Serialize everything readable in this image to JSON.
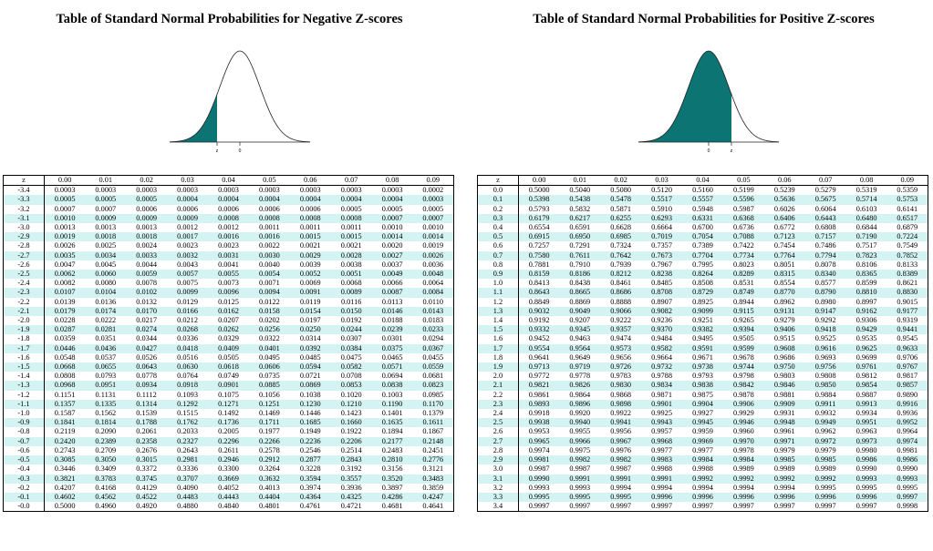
{
  "negative": {
    "title": "Table of Standard Normal Probabilities for Negative Z-scores",
    "curve_labels": [
      "z",
      "0"
    ],
    "shading_color": "#0d7474",
    "header": [
      "z",
      "0.00",
      "0.01",
      "0.02",
      "0.03",
      "0.04",
      "0.05",
      "0.06",
      "0.07",
      "0.08",
      "0.09"
    ],
    "rows": [
      [
        "-3.4",
        "0.0003",
        "0.0003",
        "0.0003",
        "0.0003",
        "0.0003",
        "0.0003",
        "0.0003",
        "0.0003",
        "0.0003",
        "0.0002"
      ],
      [
        "-3.3",
        "0.0005",
        "0.0005",
        "0.0005",
        "0.0004",
        "0.0004",
        "0.0004",
        "0.0004",
        "0.0004",
        "0.0004",
        "0.0003"
      ],
      [
        "-3.2",
        "0.0007",
        "0.0007",
        "0.0006",
        "0.0006",
        "0.0006",
        "0.0006",
        "0.0006",
        "0.0005",
        "0.0005",
        "0.0005"
      ],
      [
        "-3.1",
        "0.0010",
        "0.0009",
        "0.0009",
        "0.0009",
        "0.0008",
        "0.0008",
        "0.0008",
        "0.0008",
        "0.0007",
        "0.0007"
      ],
      [
        "-3.0",
        "0.0013",
        "0.0013",
        "0.0013",
        "0.0012",
        "0.0012",
        "0.0011",
        "0.0011",
        "0.0011",
        "0.0010",
        "0.0010"
      ],
      [
        "-2.9",
        "0.0019",
        "0.0018",
        "0.0018",
        "0.0017",
        "0.0016",
        "0.0016",
        "0.0015",
        "0.0015",
        "0.0014",
        "0.0014"
      ],
      [
        "-2.8",
        "0.0026",
        "0.0025",
        "0.0024",
        "0.0023",
        "0.0023",
        "0.0022",
        "0.0021",
        "0.0021",
        "0.0020",
        "0.0019"
      ],
      [
        "-2.7",
        "0.0035",
        "0.0034",
        "0.0033",
        "0.0032",
        "0.0031",
        "0.0030",
        "0.0029",
        "0.0028",
        "0.0027",
        "0.0026"
      ],
      [
        "-2.6",
        "0.0047",
        "0.0045",
        "0.0044",
        "0.0043",
        "0.0041",
        "0.0040",
        "0.0039",
        "0.0038",
        "0.0037",
        "0.0036"
      ],
      [
        "-2.5",
        "0.0062",
        "0.0060",
        "0.0059",
        "0.0057",
        "0.0055",
        "0.0054",
        "0.0052",
        "0.0051",
        "0.0049",
        "0.0048"
      ],
      [
        "-2.4",
        "0.0082",
        "0.0080",
        "0.0078",
        "0.0075",
        "0.0073",
        "0.0071",
        "0.0069",
        "0.0068",
        "0.0066",
        "0.0064"
      ],
      [
        "-2.3",
        "0.0107",
        "0.0104",
        "0.0102",
        "0.0099",
        "0.0096",
        "0.0094",
        "0.0091",
        "0.0089",
        "0.0087",
        "0.0084"
      ],
      [
        "-2.2",
        "0.0139",
        "0.0136",
        "0.0132",
        "0.0129",
        "0.0125",
        "0.0122",
        "0.0119",
        "0.0116",
        "0.0113",
        "0.0110"
      ],
      [
        "-2.1",
        "0.0179",
        "0.0174",
        "0.0170",
        "0.0166",
        "0.0162",
        "0.0158",
        "0.0154",
        "0.0150",
        "0.0146",
        "0.0143"
      ],
      [
        "-2.0",
        "0.0228",
        "0.0222",
        "0.0217",
        "0.0212",
        "0.0207",
        "0.0202",
        "0.0197",
        "0.0192",
        "0.0188",
        "0.0183"
      ],
      [
        "-1.9",
        "0.0287",
        "0.0281",
        "0.0274",
        "0.0268",
        "0.0262",
        "0.0256",
        "0.0250",
        "0.0244",
        "0.0239",
        "0.0233"
      ],
      [
        "-1.8",
        "0.0359",
        "0.0351",
        "0.0344",
        "0.0336",
        "0.0329",
        "0.0322",
        "0.0314",
        "0.0307",
        "0.0301",
        "0.0294"
      ],
      [
        "-1.7",
        "0.0446",
        "0.0436",
        "0.0427",
        "0.0418",
        "0.0409",
        "0.0401",
        "0.0392",
        "0.0384",
        "0.0375",
        "0.0367"
      ],
      [
        "-1.6",
        "0.0548",
        "0.0537",
        "0.0526",
        "0.0516",
        "0.0505",
        "0.0495",
        "0.0485",
        "0.0475",
        "0.0465",
        "0.0455"
      ],
      [
        "-1.5",
        "0.0668",
        "0.0655",
        "0.0643",
        "0.0630",
        "0.0618",
        "0.0606",
        "0.0594",
        "0.0582",
        "0.0571",
        "0.0559"
      ],
      [
        "-1.4",
        "0.0808",
        "0.0793",
        "0.0778",
        "0.0764",
        "0.0749",
        "0.0735",
        "0.0721",
        "0.0708",
        "0.0694",
        "0.0681"
      ],
      [
        "-1.3",
        "0.0968",
        "0.0951",
        "0.0934",
        "0.0918",
        "0.0901",
        "0.0885",
        "0.0869",
        "0.0853",
        "0.0838",
        "0.0823"
      ],
      [
        "-1.2",
        "0.1151",
        "0.1131",
        "0.1112",
        "0.1093",
        "0.1075",
        "0.1056",
        "0.1038",
        "0.1020",
        "0.1003",
        "0.0985"
      ],
      [
        "-1.1",
        "0.1357",
        "0.1335",
        "0.1314",
        "0.1292",
        "0.1271",
        "0.1251",
        "0.1230",
        "0.1210",
        "0.1190",
        "0.1170"
      ],
      [
        "-1.0",
        "0.1587",
        "0.1562",
        "0.1539",
        "0.1515",
        "0.1492",
        "0.1469",
        "0.1446",
        "0.1423",
        "0.1401",
        "0.1379"
      ],
      [
        "-0.9",
        "0.1841",
        "0.1814",
        "0.1788",
        "0.1762",
        "0.1736",
        "0.1711",
        "0.1685",
        "0.1660",
        "0.1635",
        "0.1611"
      ],
      [
        "-0.8",
        "0.2119",
        "0.2090",
        "0.2061",
        "0.2033",
        "0.2005",
        "0.1977",
        "0.1949",
        "0.1922",
        "0.1894",
        "0.1867"
      ],
      [
        "-0.7",
        "0.2420",
        "0.2389",
        "0.2358",
        "0.2327",
        "0.2296",
        "0.2266",
        "0.2236",
        "0.2206",
        "0.2177",
        "0.2148"
      ],
      [
        "-0.6",
        "0.2743",
        "0.2709",
        "0.2676",
        "0.2643",
        "0.2611",
        "0.2578",
        "0.2546",
        "0.2514",
        "0.2483",
        "0.2451"
      ],
      [
        "-0.5",
        "0.3085",
        "0.3050",
        "0.3015",
        "0.2981",
        "0.2946",
        "0.2912",
        "0.2877",
        "0.2843",
        "0.2810",
        "0.2776"
      ],
      [
        "-0.4",
        "0.3446",
        "0.3409",
        "0.3372",
        "0.3336",
        "0.3300",
        "0.3264",
        "0.3228",
        "0.3192",
        "0.3156",
        "0.3121"
      ],
      [
        "-0.3",
        "0.3821",
        "0.3783",
        "0.3745",
        "0.3707",
        "0.3669",
        "0.3632",
        "0.3594",
        "0.3557",
        "0.3520",
        "0.3483"
      ],
      [
        "-0.2",
        "0.4207",
        "0.4168",
        "0.4129",
        "0.4090",
        "0.4052",
        "0.4013",
        "0.3974",
        "0.3936",
        "0.3897",
        "0.3859"
      ],
      [
        "-0.1",
        "0.4602",
        "0.4562",
        "0.4522",
        "0.4483",
        "0.4443",
        "0.4404",
        "0.4364",
        "0.4325",
        "0.4286",
        "0.4247"
      ],
      [
        "-0.0",
        "0.5000",
        "0.4960",
        "0.4920",
        "0.4880",
        "0.4840",
        "0.4801",
        "0.4761",
        "0.4721",
        "0.4681",
        "0.4641"
      ]
    ]
  },
  "positive": {
    "title": "Table of Standard Normal Probabilities for Positive Z-scores",
    "curve_labels": [
      "0",
      "z"
    ],
    "shading_color": "#0d7474",
    "header": [
      "z",
      "0.00",
      "0.01",
      "0.02",
      "0.03",
      "0.04",
      "0.05",
      "0.06",
      "0.07",
      "0.08",
      "0.09"
    ],
    "rows": [
      [
        "0.0",
        "0.5000",
        "0.5040",
        "0.5080",
        "0.5120",
        "0.5160",
        "0.5199",
        "0.5239",
        "0.5279",
        "0.5319",
        "0.5359"
      ],
      [
        "0.1",
        "0.5398",
        "0.5438",
        "0.5478",
        "0.5517",
        "0.5557",
        "0.5596",
        "0.5636",
        "0.5675",
        "0.5714",
        "0.5753"
      ],
      [
        "0.2",
        "0.5793",
        "0.5832",
        "0.5871",
        "0.5910",
        "0.5948",
        "0.5987",
        "0.6026",
        "0.6064",
        "0.6103",
        "0.6141"
      ],
      [
        "0.3",
        "0.6179",
        "0.6217",
        "0.6255",
        "0.6293",
        "0.6331",
        "0.6368",
        "0.6406",
        "0.6443",
        "0.6480",
        "0.6517"
      ],
      [
        "0.4",
        "0.6554",
        "0.6591",
        "0.6628",
        "0.6664",
        "0.6700",
        "0.6736",
        "0.6772",
        "0.6808",
        "0.6844",
        "0.6879"
      ],
      [
        "0.5",
        "0.6915",
        "0.6950",
        "0.6985",
        "0.7019",
        "0.7054",
        "0.7088",
        "0.7123",
        "0.7157",
        "0.7190",
        "0.7224"
      ],
      [
        "0.6",
        "0.7257",
        "0.7291",
        "0.7324",
        "0.7357",
        "0.7389",
        "0.7422",
        "0.7454",
        "0.7486",
        "0.7517",
        "0.7549"
      ],
      [
        "0.7",
        "0.7580",
        "0.7611",
        "0.7642",
        "0.7673",
        "0.7704",
        "0.7734",
        "0.7764",
        "0.7794",
        "0.7823",
        "0.7852"
      ],
      [
        "0.8",
        "0.7881",
        "0.7910",
        "0.7939",
        "0.7967",
        "0.7995",
        "0.8023",
        "0.8051",
        "0.8078",
        "0.8106",
        "0.8133"
      ],
      [
        "0.9",
        "0.8159",
        "0.8186",
        "0.8212",
        "0.8238",
        "0.8264",
        "0.8289",
        "0.8315",
        "0.8340",
        "0.8365",
        "0.8389"
      ],
      [
        "1.0",
        "0.8413",
        "0.8438",
        "0.8461",
        "0.8485",
        "0.8508",
        "0.8531",
        "0.8554",
        "0.8577",
        "0.8599",
        "0.8621"
      ],
      [
        "1.1",
        "0.8643",
        "0.8665",
        "0.8686",
        "0.8708",
        "0.8729",
        "0.8749",
        "0.8770",
        "0.8790",
        "0.8810",
        "0.8830"
      ],
      [
        "1.2",
        "0.8849",
        "0.8869",
        "0.8888",
        "0.8907",
        "0.8925",
        "0.8944",
        "0.8962",
        "0.8980",
        "0.8997",
        "0.9015"
      ],
      [
        "1.3",
        "0.9032",
        "0.9049",
        "0.9066",
        "0.9082",
        "0.9099",
        "0.9115",
        "0.9131",
        "0.9147",
        "0.9162",
        "0.9177"
      ],
      [
        "1.4",
        "0.9192",
        "0.9207",
        "0.9222",
        "0.9236",
        "0.9251",
        "0.9265",
        "0.9279",
        "0.9292",
        "0.9306",
        "0.9319"
      ],
      [
        "1.5",
        "0.9332",
        "0.9345",
        "0.9357",
        "0.9370",
        "0.9382",
        "0.9394",
        "0.9406",
        "0.9418",
        "0.9429",
        "0.9441"
      ],
      [
        "1.6",
        "0.9452",
        "0.9463",
        "0.9474",
        "0.9484",
        "0.9495",
        "0.9505",
        "0.9515",
        "0.9525",
        "0.9535",
        "0.9545"
      ],
      [
        "1.7",
        "0.9554",
        "0.9564",
        "0.9573",
        "0.9582",
        "0.9591",
        "0.9599",
        "0.9608",
        "0.9616",
        "0.9625",
        "0.9633"
      ],
      [
        "1.8",
        "0.9641",
        "0.9649",
        "0.9656",
        "0.9664",
        "0.9671",
        "0.9678",
        "0.9686",
        "0.9693",
        "0.9699",
        "0.9706"
      ],
      [
        "1.9",
        "0.9713",
        "0.9719",
        "0.9726",
        "0.9732",
        "0.9738",
        "0.9744",
        "0.9750",
        "0.9756",
        "0.9761",
        "0.9767"
      ],
      [
        "2.0",
        "0.9772",
        "0.9778",
        "0.9783",
        "0.9788",
        "0.9793",
        "0.9798",
        "0.9803",
        "0.9808",
        "0.9812",
        "0.9817"
      ],
      [
        "2.1",
        "0.9821",
        "0.9826",
        "0.9830",
        "0.9834",
        "0.9838",
        "0.9842",
        "0.9846",
        "0.9850",
        "0.9854",
        "0.9857"
      ],
      [
        "2.2",
        "0.9861",
        "0.9864",
        "0.9868",
        "0.9871",
        "0.9875",
        "0.9878",
        "0.9881",
        "0.9884",
        "0.9887",
        "0.9890"
      ],
      [
        "2.3",
        "0.9893",
        "0.9896",
        "0.9898",
        "0.9901",
        "0.9904",
        "0.9906",
        "0.9909",
        "0.9911",
        "0.9913",
        "0.9916"
      ],
      [
        "2.4",
        "0.9918",
        "0.9920",
        "0.9922",
        "0.9925",
        "0.9927",
        "0.9929",
        "0.9931",
        "0.9932",
        "0.9934",
        "0.9936"
      ],
      [
        "2.5",
        "0.9938",
        "0.9940",
        "0.9941",
        "0.9943",
        "0.9945",
        "0.9946",
        "0.9948",
        "0.9949",
        "0.9951",
        "0.9952"
      ],
      [
        "2.6",
        "0.9953",
        "0.9955",
        "0.9956",
        "0.9957",
        "0.9959",
        "0.9960",
        "0.9961",
        "0.9962",
        "0.9963",
        "0.9964"
      ],
      [
        "2.7",
        "0.9965",
        "0.9966",
        "0.9967",
        "0.9968",
        "0.9969",
        "0.9970",
        "0.9971",
        "0.9972",
        "0.9973",
        "0.9974"
      ],
      [
        "2.8",
        "0.9974",
        "0.9975",
        "0.9976",
        "0.9977",
        "0.9977",
        "0.9978",
        "0.9979",
        "0.9979",
        "0.9980",
        "0.9981"
      ],
      [
        "2.9",
        "0.9981",
        "0.9982",
        "0.9982",
        "0.9983",
        "0.9984",
        "0.9984",
        "0.9985",
        "0.9985",
        "0.9986",
        "0.9986"
      ],
      [
        "3.0",
        "0.9987",
        "0.9987",
        "0.9987",
        "0.9988",
        "0.9988",
        "0.9989",
        "0.9989",
        "0.9989",
        "0.9990",
        "0.9990"
      ],
      [
        "3.1",
        "0.9990",
        "0.9991",
        "0.9991",
        "0.9991",
        "0.9992",
        "0.9992",
        "0.9992",
        "0.9992",
        "0.9993",
        "0.9993"
      ],
      [
        "3.2",
        "0.9993",
        "0.9993",
        "0.9994",
        "0.9994",
        "0.9994",
        "0.9994",
        "0.9994",
        "0.9995",
        "0.9995",
        "0.9995"
      ],
      [
        "3.3",
        "0.9995",
        "0.9995",
        "0.9995",
        "0.9996",
        "0.9996",
        "0.9996",
        "0.9996",
        "0.9996",
        "0.9996",
        "0.9997"
      ],
      [
        "3.4",
        "0.9997",
        "0.9997",
        "0.9997",
        "0.9997",
        "0.9997",
        "0.9997",
        "0.9997",
        "0.9997",
        "0.9997",
        "0.9998"
      ]
    ]
  }
}
